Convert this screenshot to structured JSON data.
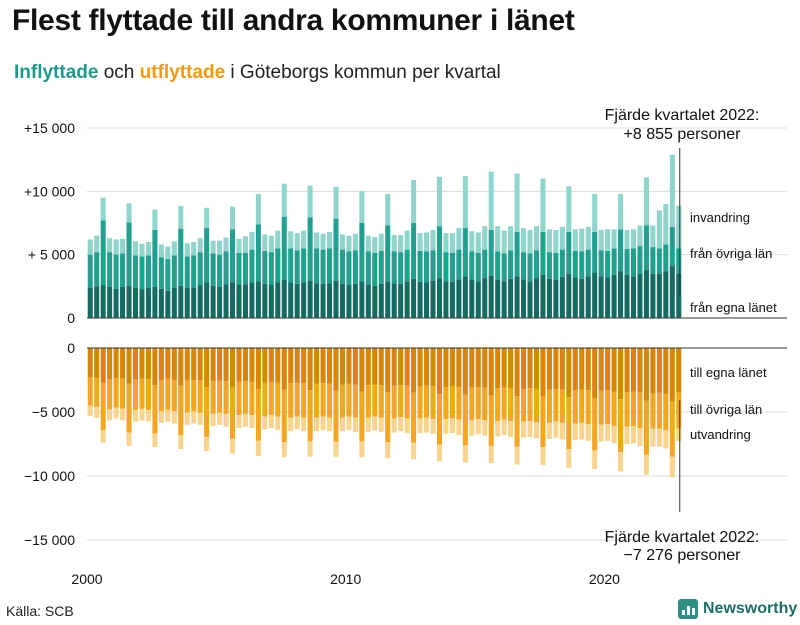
{
  "title": "Flest flyttade till andra kommuner i länet",
  "subtitle": {
    "part_in": "Inflyttade",
    "part_mid": " och ",
    "part_out": "utflyttade",
    "part_rest": " i Göteborgs kommun per kvartal"
  },
  "source": "Källa: SCB",
  "brand": "Newsworthy",
  "colors": {
    "in_egna": "#146b62",
    "in_ovriga": "#21a090",
    "in_invandring": "#8fd5cc",
    "out_egna": "#d8850a",
    "out_ovriga": "#f4a623",
    "out_utvandring": "#f8d48e"
  },
  "chart_data": {
    "type": "bar",
    "stacked": true,
    "x_ticks": [
      "2000",
      "2010",
      "2020"
    ],
    "top_axis": {
      "ticks": [
        "+15 000",
        "+10 000",
        "+ 5 000",
        "0"
      ],
      "ylim": [
        0,
        15000
      ]
    },
    "bottom_axis": {
      "ticks": [
        "0",
        "−5 000",
        "−10 000",
        "−15 000"
      ],
      "ylim": [
        -15000,
        0
      ]
    },
    "categories": [
      "2000 K1",
      "2000 K2",
      "2000 K3",
      "2000 K4",
      "2001 K1",
      "2001 K2",
      "2001 K3",
      "2001 K4",
      "2002 K1",
      "2002 K2",
      "2002 K3",
      "2002 K4",
      "2003 K1",
      "2003 K2",
      "2003 K3",
      "2003 K4",
      "2004 K1",
      "2004 K2",
      "2004 K3",
      "2004 K4",
      "2005 K1",
      "2005 K2",
      "2005 K3",
      "2005 K4",
      "2006 K1",
      "2006 K2",
      "2006 K3",
      "2006 K4",
      "2007 K1",
      "2007 K2",
      "2007 K3",
      "2007 K4",
      "2008 K1",
      "2008 K2",
      "2008 K3",
      "2008 K4",
      "2009 K1",
      "2009 K2",
      "2009 K3",
      "2009 K4",
      "2010 K1",
      "2010 K2",
      "2010 K3",
      "2010 K4",
      "2011 K1",
      "2011 K2",
      "2011 K3",
      "2011 K4",
      "2012 K1",
      "2012 K2",
      "2012 K3",
      "2012 K4",
      "2013 K1",
      "2013 K2",
      "2013 K3",
      "2013 K4",
      "2014 K1",
      "2014 K2",
      "2014 K3",
      "2014 K4",
      "2015 K1",
      "2015 K2",
      "2015 K3",
      "2015 K4",
      "2016 K1",
      "2016 K2",
      "2016 K3",
      "2016 K4",
      "2017 K1",
      "2017 K2",
      "2017 K3",
      "2017 K4",
      "2018 K1",
      "2018 K2",
      "2018 K3",
      "2018 K4",
      "2019 K1",
      "2019 K2",
      "2019 K3",
      "2019 K4",
      "2020 K1",
      "2020 K2",
      "2020 K3",
      "2020 K4",
      "2021 K1",
      "2021 K2",
      "2021 K3",
      "2021 K4",
      "2022 K1",
      "2022 K2",
      "2022 K3",
      "2022 K4"
    ],
    "series_in": [
      {
        "name": "från egna länet",
        "values": [
          2400,
          2500,
          2600,
          2450,
          2300,
          2450,
          2550,
          2400,
          2250,
          2400,
          2450,
          2300,
          2150,
          2400,
          2550,
          2400,
          2400,
          2600,
          2800,
          2550,
          2450,
          2650,
          2800,
          2650,
          2650,
          2800,
          2900,
          2700,
          2650,
          2800,
          3000,
          2800,
          2700,
          2800,
          2950,
          2750,
          2700,
          2750,
          2950,
          2700,
          2600,
          2700,
          2900,
          2650,
          2550,
          2700,
          2900,
          2750,
          2700,
          2900,
          3100,
          2850,
          2800,
          2950,
          3150,
          2900,
          2850,
          3050,
          3300,
          3000,
          2900,
          3150,
          3350,
          3050,
          2900,
          3100,
          3300,
          3050,
          2900,
          3150,
          3400,
          3100,
          3000,
          3250,
          3500,
          3200,
          3100,
          3300,
          3600,
          3300,
          3200,
          3400,
          3700,
          3400,
          3300,
          3500,
          3800,
          3500,
          3500,
          3700,
          4100,
          3500
        ]
      },
      {
        "name": "från övriga län",
        "values": [
          2600,
          2700,
          5100,
          2750,
          2700,
          2650,
          5000,
          2550,
          2600,
          2550,
          4500,
          2500,
          2500,
          2550,
          4500,
          2450,
          2550,
          2600,
          4300,
          2550,
          2550,
          2600,
          4200,
          2500,
          2500,
          2600,
          4500,
          2600,
          2550,
          2700,
          5000,
          2700,
          2650,
          2700,
          5000,
          2750,
          2700,
          2750,
          4900,
          2700,
          2650,
          2650,
          4600,
          2600,
          2600,
          2600,
          4400,
          2500,
          2500,
          2500,
          4400,
          2450,
          2450,
          2400,
          4100,
          2300,
          2300,
          2350,
          3800,
          2250,
          2250,
          2250,
          3600,
          2200,
          2200,
          2250,
          3500,
          2150,
          2200,
          2200,
          3400,
          2100,
          2150,
          2150,
          3300,
          2100,
          2150,
          2100,
          3200,
          2050,
          2100,
          2100,
          3300,
          2050,
          2200,
          2200,
          3500,
          2100,
          2000,
          2100,
          3100,
          2000
        ]
      },
      {
        "name": "invandring",
        "values": [
          1200,
          1300,
          1800,
          1100,
          1200,
          1150,
          1500,
          1100,
          1000,
          1050,
          1600,
          1000,
          1000,
          1100,
          1800,
          1050,
          1050,
          1100,
          1600,
          1000,
          1100,
          1100,
          1800,
          1100,
          1300,
          1400,
          2400,
          1300,
          1300,
          1400,
          2600,
          1350,
          1350,
          1400,
          2500,
          1250,
          1250,
          1300,
          2500,
          1200,
          1250,
          1300,
          2500,
          1250,
          1250,
          1350,
          2500,
          1300,
          1350,
          1500,
          3400,
          1400,
          1500,
          1600,
          3900,
          1500,
          1550,
          1700,
          4100,
          1600,
          1600,
          1850,
          4600,
          2000,
          1800,
          1900,
          4600,
          1900,
          1850,
          1900,
          4200,
          1800,
          1800,
          1800,
          3600,
          1700,
          1800,
          1800,
          3000,
          1600,
          1700,
          1500,
          2800,
          1500,
          1500,
          1600,
          3800,
          1700,
          3000,
          3200,
          5700,
          3355
        ]
      }
    ],
    "series_out": [
      {
        "name": "till egna länet",
        "values": [
          -2300,
          -2350,
          -2700,
          -2450,
          -2350,
          -2400,
          -2800,
          -2450,
          -2400,
          -2450,
          -2900,
          -2500,
          -2450,
          -2500,
          -2950,
          -2550,
          -2500,
          -2550,
          -3050,
          -2600,
          -2550,
          -2600,
          -3100,
          -2650,
          -2600,
          -2650,
          -3200,
          -2700,
          -2650,
          -2700,
          -3250,
          -2750,
          -2700,
          -2750,
          -3300,
          -2800,
          -2750,
          -2800,
          -3350,
          -2850,
          -2800,
          -2850,
          -3400,
          -2900,
          -2850,
          -2900,
          -3450,
          -2950,
          -2900,
          -2950,
          -3500,
          -3000,
          -2950,
          -3000,
          -3600,
          -3050,
          -3000,
          -3050,
          -3650,
          -3100,
          -3050,
          -3100,
          -3700,
          -3150,
          -3100,
          -3150,
          -3750,
          -3200,
          -3150,
          -3200,
          -3800,
          -3250,
          -3200,
          -3250,
          -3850,
          -3300,
          -3250,
          -3300,
          -3900,
          -3350,
          -3300,
          -3400,
          -4000,
          -3450,
          -3400,
          -3500,
          -4100,
          -3550,
          -3500,
          -3600,
          -4200,
          -3500
        ]
      },
      {
        "name": "till övriga län",
        "values": [
          -2200,
          -2250,
          -3700,
          -2350,
          -2300,
          -2350,
          -3800,
          -2400,
          -2350,
          -2400,
          -3800,
          -2450,
          -2400,
          -2450,
          -3850,
          -2500,
          -2450,
          -2500,
          -3900,
          -2550,
          -2500,
          -2550,
          -4000,
          -2600,
          -2550,
          -2600,
          -4050,
          -2650,
          -2600,
          -2650,
          -4100,
          -2700,
          -2650,
          -2700,
          -4000,
          -2650,
          -2600,
          -2650,
          -3950,
          -2600,
          -2550,
          -2600,
          -3900,
          -2550,
          -2500,
          -2550,
          -3900,
          -2550,
          -2500,
          -2550,
          -3900,
          -2500,
          -2500,
          -2550,
          -3950,
          -2500,
          -2500,
          -2550,
          -3950,
          -2550,
          -2500,
          -2550,
          -3950,
          -2550,
          -2500,
          -2550,
          -3950,
          -2550,
          -2550,
          -2600,
          -3950,
          -2600,
          -2550,
          -2600,
          -4050,
          -2600,
          -2600,
          -2650,
          -4100,
          -2650,
          -2650,
          -2700,
          -4150,
          -2700,
          -2700,
          -2750,
          -4250,
          -2750,
          -2800,
          -2800,
          -4300,
          -2800
        ]
      },
      {
        "name": "utvandring",
        "values": [
          -800,
          -850,
          -1000,
          -850,
          -850,
          -900,
          -1050,
          -900,
          -900,
          -900,
          -1050,
          -900,
          -900,
          -950,
          -1100,
          -950,
          -950,
          -950,
          -1100,
          -950,
          -950,
          -1000,
          -1150,
          -1000,
          -1000,
          -1000,
          -1200,
          -1000,
          -1000,
          -1050,
          -1200,
          -1050,
          -1000,
          -1050,
          -1200,
          -1050,
          -1050,
          -1050,
          -1200,
          -1050,
          -1050,
          -1100,
          -1250,
          -1100,
          -1100,
          -1100,
          -1250,
          -1100,
          -1100,
          -1150,
          -1300,
          -1150,
          -1150,
          -1150,
          -1300,
          -1150,
          -1150,
          -1200,
          -1350,
          -1200,
          -1200,
          -1200,
          -1350,
          -1200,
          -1200,
          -1250,
          -1400,
          -1250,
          -1250,
          -1250,
          -1400,
          -1250,
          -1250,
          -1300,
          -1450,
          -1300,
          -1300,
          -1300,
          -1450,
          -1300,
          -1300,
          -1350,
          -1500,
          -1350,
          -1350,
          -1400,
          -1550,
          -1400,
          -1400,
          -1450,
          -1600,
          -976
        ]
      }
    ],
    "labels_in": [
      "invandring",
      "från övriga län",
      "från egna länet"
    ],
    "labels_out": [
      "till egna länet",
      "till övriga län",
      "utvandring"
    ],
    "annotation_top": [
      "Fjärde kvartalet 2022:",
      "+8 855 personer"
    ],
    "annotation_bottom": [
      "Fjärde kvartalet 2022:",
      "−7 276 personer"
    ],
    "grid": true
  }
}
